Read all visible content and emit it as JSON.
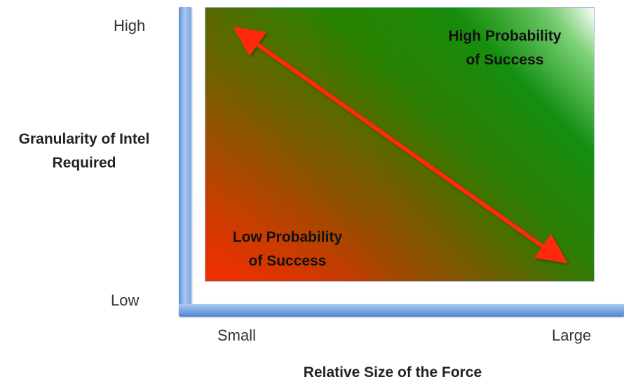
{
  "y_axis": {
    "title": "Granularity of Intel Required",
    "tick_high": "High",
    "tick_low": "Low"
  },
  "x_axis": {
    "title": "Relative Size of the Force",
    "tick_small": "Small",
    "tick_large": "Large"
  },
  "regions": {
    "high_label_line1": "High Probability",
    "high_label_line2": "of Success",
    "low_label_line1": "Low Probability",
    "low_label_line2": "of Success"
  },
  "colors": {
    "axis": "#6f9fe0",
    "arrow": "#ff2a0f",
    "success": "#129012",
    "failure": "#ff2a00"
  }
}
